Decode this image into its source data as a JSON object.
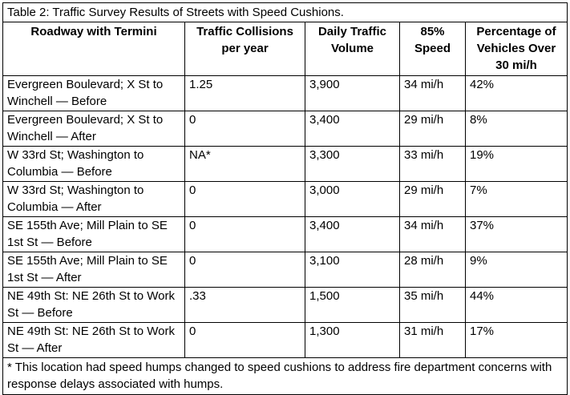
{
  "caption": "Table 2: Traffic Survey Results of Streets with Speed Cushions.",
  "headers": {
    "roadway": "Roadway with Termini",
    "collisions": "Traffic Collisions per year",
    "volume": "Daily Traffic Volume",
    "speed": "85% Speed",
    "percentage": "Percentage of Vehicles Over 30 mi/h"
  },
  "rows": [
    {
      "roadway": "Evergreen Boulevard; X St to Winchell — Before",
      "collisions": "1.25",
      "volume": "3,900",
      "speed": "34 mi/h",
      "percentage": "42%"
    },
    {
      "roadway": "Evergreen Boulevard; X St to Winchell — After",
      "collisions": "0",
      "volume": "3,400",
      "speed": "29 mi/h",
      "percentage": "8%"
    },
    {
      "roadway": "W 33rd St; Washington to Columbia — Before",
      "collisions": "NA*",
      "volume": "3,300",
      "speed": "33 mi/h",
      "percentage": "19%"
    },
    {
      "roadway": "W 33rd St; Washington to Columbia — After",
      "collisions": "0",
      "volume": "3,000",
      "speed": "29 mi/h",
      "percentage": "7%"
    },
    {
      "roadway": "SE 155th Ave; Mill Plain to SE 1st St — Before",
      "collisions": "0",
      "volume": "3,400",
      "speed": "34 mi/h",
      "percentage": "37%"
    },
    {
      "roadway": "SE 155th Ave; Mill Plain to SE 1st St — After",
      "collisions": "0",
      "volume": "3,100",
      "speed": "28 mi/h",
      "percentage": "9%"
    },
    {
      "roadway": "NE 49th St: NE 26th St to Work St — Before",
      "collisions": ".33",
      "volume": "1,500",
      "speed": "35 mi/h",
      "percentage": "44%"
    },
    {
      "roadway": "NE 49th St: NE 26th St to Work St — After",
      "collisions": "0",
      "volume": "1,300",
      "speed": "31 mi/h",
      "percentage": "17%"
    }
  ],
  "footnote": "* This location had speed humps changed to speed cushions to address fire department concerns with response delays associated with humps."
}
